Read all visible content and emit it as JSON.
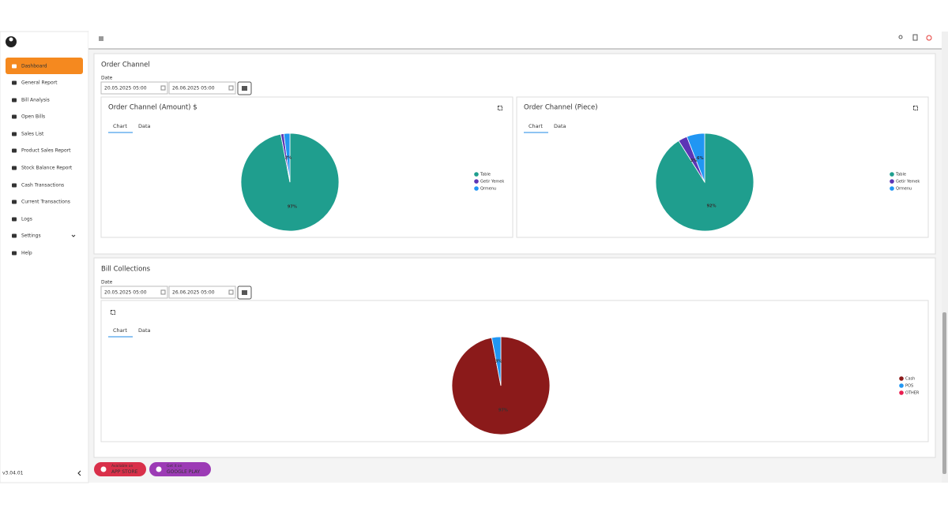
{
  "sidebar": {
    "menu": [
      "Dashboard",
      "General Report",
      "Bill Analysis",
      "Open Bills",
      "Sales List",
      "Product Sales Report",
      "Stock Balance Report",
      "Cash Transactions",
      "Current Transactions",
      "Logs",
      "Settings",
      "Help"
    ],
    "version": "v3.04.01"
  },
  "tabs": [
    "Chart",
    "Data"
  ],
  "panels": [
    {
      "title": "Order Channel",
      "date_label": "Date",
      "start": "20.05.2025 05:00",
      "end": "26.06.2025 05:00"
    },
    {
      "title": "Bill Collections",
      "date_label": "Date",
      "start": "20.05.2025 05:00",
      "end": "26.06.2025 05:00"
    }
  ],
  "chart_data": [
    {
      "type": "pie",
      "title": "Order Channel (Amount) $",
      "categories": [
        "Table",
        "Getir Yemek",
        "Qrmenu"
      ],
      "values": [
        97,
        1,
        2
      ],
      "value_labels": [
        "97%",
        null,
        "2%"
      ],
      "colors": [
        "#1f9e8e",
        "#5c35b5",
        "#2196f3"
      ]
    },
    {
      "type": "pie",
      "title": "Order Channel (Piece)",
      "categories": [
        "Table",
        "Getir Yemek",
        "Qrmenu"
      ],
      "values": [
        92,
        3,
        6
      ],
      "value_labels": [
        "92%",
        "3%",
        "6%"
      ],
      "colors": [
        "#1f9e8e",
        "#5c35b5",
        "#2196f3"
      ]
    },
    {
      "type": "pie",
      "categories": [
        "Cash",
        "POS",
        "OTHER"
      ],
      "values": [
        97,
        3,
        0
      ],
      "value_labels": [
        "97%",
        "3%",
        null
      ],
      "colors": [
        "#8b1a1a",
        "#2196f3",
        "#e91e50"
      ]
    }
  ],
  "store_buttons": [
    {
      "line1": "Available on",
      "line2": "APP STORE"
    },
    {
      "line1": "Get it on",
      "line2": "GOOGLE PLAY"
    }
  ]
}
